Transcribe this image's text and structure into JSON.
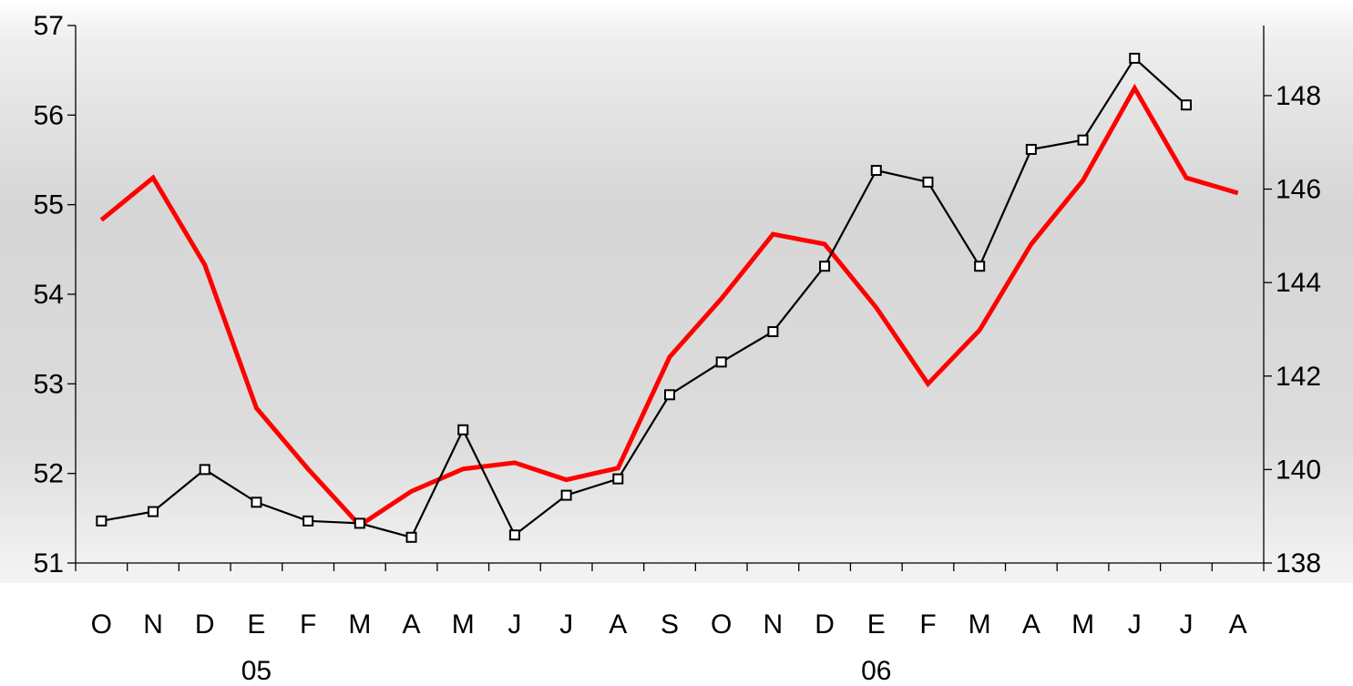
{
  "chart_data": {
    "type": "line",
    "title": "",
    "xlabel": "",
    "ylabel": "",
    "categories": [
      "O",
      "N",
      "D",
      "E",
      "F",
      "M",
      "A",
      "M",
      "J",
      "J",
      "A",
      "S",
      "O",
      "N",
      "D",
      "E",
      "F",
      "M",
      "A",
      "M",
      "J",
      "J",
      "A"
    ],
    "year_labels": [
      {
        "label": "05",
        "category_index": 3
      },
      {
        "label": "06",
        "category_index": 15
      }
    ],
    "y_left": {
      "min": 51,
      "max": 57,
      "ticks": [
        51,
        52,
        53,
        54,
        55,
        56,
        57
      ]
    },
    "y_right": {
      "min": 138,
      "max": 149.5,
      "ticks": [
        138,
        140,
        142,
        144,
        146,
        148
      ]
    },
    "grid": false,
    "legend": "none",
    "series": [
      {
        "axis": "left",
        "color": "#ff0000",
        "marker": "none",
        "values": [
          54.83,
          55.3,
          54.33,
          52.73,
          52.05,
          51.42,
          51.8,
          52.05,
          52.12,
          51.93,
          52.06,
          53.3,
          53.95,
          54.67,
          54.56,
          53.85,
          53.0,
          53.6,
          54.56,
          55.27,
          56.3,
          55.3,
          55.13
        ]
      },
      {
        "axis": "right",
        "color": "#000000",
        "marker": "square",
        "values": [
          138.9,
          139.1,
          140.0,
          139.3,
          138.9,
          138.85,
          138.55,
          140.85,
          138.6,
          139.45,
          139.8,
          141.6,
          142.3,
          142.95,
          144.35,
          146.4,
          146.15,
          144.35,
          146.85,
          147.05,
          148.8,
          147.8,
          null
        ]
      }
    ]
  }
}
